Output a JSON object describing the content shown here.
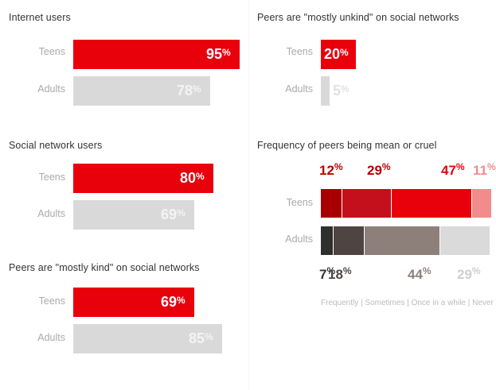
{
  "colors": {
    "teens": "#e8000b",
    "adults": "#d9d9d9",
    "teen_segments": [
      "#a80000",
      "#c4101c",
      "#e8000b",
      "#f28b8b"
    ],
    "adult_segments": [
      "#2f2f2f",
      "#4e4543",
      "#8d807a",
      "#dadada"
    ],
    "teen_labels": [
      "#b80000",
      "#b80000",
      "#e8000b",
      "#f28b8b"
    ],
    "adult_labels": [
      "#333333",
      "#4e4543",
      "#8d807a",
      "#cfcfcf"
    ]
  },
  "chart_data": [
    {
      "type": "bar",
      "title": "Internet users",
      "categories": [
        "Teens",
        "Adults"
      ],
      "values": [
        95,
        78
      ],
      "unit": "%"
    },
    {
      "type": "bar",
      "title": "Social network users",
      "categories": [
        "Teens",
        "Adults"
      ],
      "values": [
        80,
        69
      ],
      "unit": "%"
    },
    {
      "type": "bar",
      "title": "Peers are \"mostly kind\" on social networks",
      "categories": [
        "Teens",
        "Adults"
      ],
      "values": [
        69,
        85
      ],
      "unit": "%"
    },
    {
      "type": "bar",
      "title": "Peers are \"mostly unkind\" on social networks",
      "categories": [
        "Teens",
        "Adults"
      ],
      "values": [
        20,
        5
      ],
      "unit": "%"
    },
    {
      "type": "bar",
      "stacked": true,
      "title": "Frequency of peers being mean or cruel",
      "categories": [
        "Teens",
        "Adults"
      ],
      "legend": "Frequently | Sometimes | Once in a while | Never",
      "series": [
        {
          "name": "Frequently",
          "values": [
            12,
            7
          ]
        },
        {
          "name": "Sometimes",
          "values": [
            29,
            18
          ]
        },
        {
          "name": "Once in a while",
          "values": [
            47,
            44
          ]
        },
        {
          "name": "Never",
          "values": [
            11,
            29
          ]
        }
      ],
      "unit": "%"
    }
  ]
}
